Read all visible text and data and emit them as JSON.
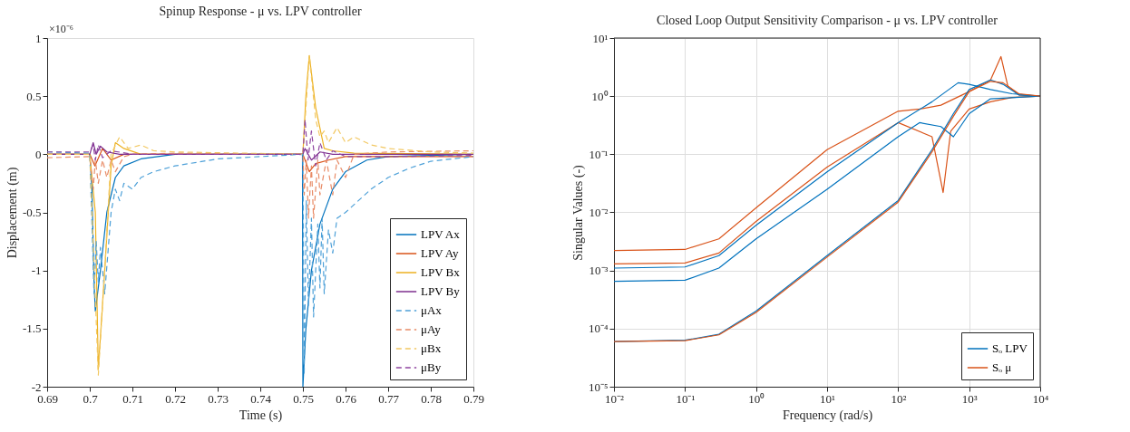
{
  "chart_data": [
    {
      "type": "line",
      "title": "Spinup Response - μ vs. LPV controller",
      "xlabel": "Time (s)",
      "ylabel": "Displacement (m)",
      "annotations": [
        "×10⁻⁶"
      ],
      "xlim": [
        0.69,
        0.79
      ],
      "xticks": [
        0.69,
        0.7,
        0.71,
        0.72,
        0.73,
        0.74,
        0.75,
        0.76,
        0.77,
        0.78,
        0.79
      ],
      "ylim": [
        -2,
        1
      ],
      "yticks": [
        -2,
        -1.5,
        -1,
        -0.5,
        0,
        0.5,
        1
      ],
      "grid": false,
      "legend": "bottom right",
      "series": [
        {
          "name": "LPV Ax",
          "color": "#0072bd",
          "line_style": "solid",
          "x": [
            0.69,
            0.7,
            0.7005,
            0.701,
            0.7013,
            0.7025,
            0.704,
            0.706,
            0.708,
            0.712,
            0.72,
            0.7499,
            0.75,
            0.7507,
            0.752,
            0.754,
            0.757,
            0.76,
            0.765,
            0.77,
            0.79
          ],
          "values": [
            0,
            0,
            -0.3,
            -1.1,
            -1.35,
            -1.0,
            -0.5,
            -0.2,
            -0.1,
            -0.04,
            0,
            0,
            -2,
            -1.5,
            -1.0,
            -0.6,
            -0.3,
            -0.15,
            -0.05,
            -0.02,
            0
          ]
        },
        {
          "name": "LPV Ay",
          "color": "#d95319",
          "line_style": "solid",
          "x": [
            0.69,
            0.7,
            0.7012,
            0.703,
            0.705,
            0.708,
            0.75,
            0.7515,
            0.753,
            0.756,
            0.76,
            0.79
          ],
          "values": [
            0,
            0,
            -0.1,
            0.05,
            -0.05,
            0,
            0,
            -0.15,
            -0.08,
            -0.05,
            -0.02,
            -0.02
          ]
        },
        {
          "name": "LPV Bx",
          "color": "#edb120",
          "line_style": "solid",
          "x": [
            0.69,
            0.7,
            0.7013,
            0.702,
            0.7035,
            0.705,
            0.706,
            0.708,
            0.712,
            0.75,
            0.7507,
            0.7515,
            0.753,
            0.755,
            0.757,
            0.762,
            0.79
          ],
          "values": [
            0,
            0,
            -0.5,
            -1.85,
            -1.0,
            -0.1,
            0.1,
            0.05,
            0,
            0,
            0.5,
            0.85,
            0.4,
            0.05,
            0.03,
            0.01,
            0
          ]
        },
        {
          "name": "LPV By",
          "color": "#7e2f8e",
          "line_style": "solid",
          "x": [
            0.69,
            0.7,
            0.7008,
            0.7015,
            0.7025,
            0.704,
            0.707,
            0.75,
            0.7505,
            0.752,
            0.754,
            0.757,
            0.79
          ],
          "values": [
            0,
            0,
            0.1,
            0,
            0.07,
            0.02,
            0,
            0,
            0.05,
            -0.05,
            0.02,
            0,
            0
          ]
        },
        {
          "name": "μAx",
          "color": "#4da0d8",
          "line_style": "dashed",
          "x": [
            0.69,
            0.7,
            0.701,
            0.7015,
            0.702,
            0.7025,
            0.7035,
            0.705,
            0.706,
            0.707,
            0.708,
            0.71,
            0.712,
            0.715,
            0.72,
            0.73,
            0.74,
            0.75,
            0.7503,
            0.7508,
            0.7513,
            0.752,
            0.7525,
            0.7535,
            0.754,
            0.7545,
            0.755,
            0.756,
            0.757,
            0.758,
            0.76,
            0.763,
            0.766,
            0.77,
            0.775,
            0.78,
            0.79
          ],
          "values": [
            0.02,
            0.01,
            -1.2,
            -0.75,
            -1.1,
            -0.8,
            -1.2,
            -0.5,
            -0.3,
            -0.4,
            -0.25,
            -0.3,
            -0.2,
            -0.15,
            -0.1,
            -0.04,
            -0.02,
            0,
            -1.9,
            -0.4,
            -1.3,
            -0.55,
            -1.4,
            -0.6,
            -1.15,
            -0.55,
            -1.2,
            -0.65,
            -0.85,
            -0.55,
            -0.5,
            -0.4,
            -0.3,
            -0.2,
            -0.12,
            -0.06,
            -0.02
          ]
        },
        {
          "name": "μAy",
          "color": "#e88b66",
          "line_style": "dashed",
          "x": [
            0.69,
            0.7,
            0.7008,
            0.7013,
            0.702,
            0.703,
            0.704,
            0.705,
            0.706,
            0.708,
            0.71,
            0.72,
            0.75,
            0.7503,
            0.7508,
            0.7513,
            0.752,
            0.7525,
            0.7535,
            0.754,
            0.7555,
            0.757,
            0.758,
            0.76,
            0.762,
            0.77,
            0.79
          ],
          "values": [
            -0.03,
            -0.02,
            -0.3,
            -0.05,
            -0.25,
            -0.05,
            -0.2,
            -0.05,
            -0.15,
            -0.02,
            0,
            0.01,
            0,
            -0.35,
            -0.05,
            -0.55,
            -0.1,
            -0.55,
            -0.05,
            -0.35,
            -0.05,
            -0.35,
            -0.05,
            -0.2,
            0,
            0.02,
            0.03
          ]
        },
        {
          "name": "μBx",
          "color": "#f2c862",
          "line_style": "dashed",
          "x": [
            0.69,
            0.7,
            0.702,
            0.7035,
            0.705,
            0.707,
            0.709,
            0.712,
            0.715,
            0.72,
            0.75,
            0.7515,
            0.753,
            0.754,
            0.755,
            0.756,
            0.758,
            0.76,
            0.762,
            0.766,
            0.77,
            0.78,
            0.79
          ],
          "values": [
            0,
            0,
            -1.9,
            -1.0,
            0,
            0.15,
            0.05,
            0.08,
            0.03,
            0.02,
            0,
            0.85,
            0.3,
            0.15,
            0.2,
            0.1,
            0.23,
            0.1,
            0.15,
            0.08,
            0.05,
            0.02,
            0.01
          ]
        },
        {
          "name": "μBy",
          "color": "#8e44a0",
          "line_style": "dashed",
          "x": [
            0.69,
            0.7,
            0.7008,
            0.7013,
            0.702,
            0.703,
            0.705,
            0.71,
            0.75,
            0.7505,
            0.7512,
            0.752,
            0.753,
            0.754,
            0.7555,
            0.757,
            0.76,
            0.77,
            0.79
          ],
          "values": [
            0.02,
            0.02,
            0.08,
            -0.05,
            0.08,
            -0.03,
            0.03,
            0,
            0,
            0.3,
            -0.05,
            0.2,
            -0.1,
            0.1,
            -0.05,
            0.03,
            -0.02,
            -0.02,
            -0.01
          ]
        }
      ]
    },
    {
      "type": "line",
      "title": "Closed Loop Output Sensitivity Comparison - μ vs. LPV controller",
      "xlabel": "Frequency (rad/s)",
      "ylabel": "Singular Values (-)",
      "log": "xy",
      "grid": true,
      "legend": "bottom right",
      "xlim": [
        0.01,
        10000
      ],
      "xticks": [
        {
          "value": 0.01,
          "label": "10⁻²"
        },
        {
          "value": 0.1,
          "label": "10⁻¹"
        },
        {
          "value": 1,
          "label": "10⁰"
        },
        {
          "value": 10,
          "label": "10¹"
        },
        {
          "value": 100,
          "label": "10²"
        },
        {
          "value": 1000,
          "label": "10³"
        },
        {
          "value": 10000,
          "label": "10⁴"
        }
      ],
      "ylim": [
        1e-05,
        10
      ],
      "yticks": [
        {
          "value": 1e-05,
          "label": "10⁻⁵"
        },
        {
          "value": 0.0001,
          "label": "10⁻⁴"
        },
        {
          "value": 0.001,
          "label": "10⁻³"
        },
        {
          "value": 0.01,
          "label": "10⁻²"
        },
        {
          "value": 0.1,
          "label": "10⁻¹"
        },
        {
          "value": 1,
          "label": "10⁰"
        },
        {
          "value": 10,
          "label": "10¹"
        }
      ],
      "series": [
        {
          "color": "#d95319",
          "line_style": "solid",
          "x": [
            0.01,
            0.1,
            0.3,
            1,
            10,
            100,
            200,
            400,
            1000,
            2000,
            2800,
            3500,
            5000,
            10000
          ],
          "values": [
            0.0022,
            0.0023,
            0.0035,
            0.012,
            0.12,
            0.55,
            0.6,
            0.7,
            1.2,
            1.9,
            4.8,
            1.5,
            1.05,
            1.0
          ]
        },
        {
          "color": "#d95319",
          "line_style": "solid",
          "x": [
            0.01,
            0.1,
            0.3,
            1,
            10,
            100,
            300,
            430,
            550,
            1000,
            2000,
            4000,
            10000
          ],
          "values": [
            0.0013,
            0.00135,
            0.002,
            0.007,
            0.06,
            0.35,
            0.2,
            0.022,
            0.25,
            0.6,
            0.8,
            0.95,
            1.0
          ]
        },
        {
          "color": "#0072bd",
          "line_style": "solid",
          "x": [
            0.01,
            0.1,
            0.3,
            1,
            10,
            100,
            300,
            700,
            1000,
            2000,
            4000,
            10000
          ],
          "values": [
            0.0011,
            0.00115,
            0.0018,
            0.006,
            0.05,
            0.35,
            0.8,
            1.7,
            1.6,
            1.3,
            1.1,
            1.0
          ]
        },
        {
          "color": "#0072bd",
          "line_style": "solid",
          "x": [
            0.01,
            0.1,
            0.3,
            1,
            10,
            100,
            200,
            400,
            600,
            1000,
            2000,
            10000
          ],
          "values": [
            0.00065,
            0.00068,
            0.0011,
            0.0035,
            0.025,
            0.2,
            0.35,
            0.3,
            0.2,
            0.5,
            0.9,
            1.0
          ]
        },
        {
          "name": "Sₒ LPV",
          "color": "#0072bd",
          "line_style": "solid",
          "x": [
            0.01,
            0.1,
            0.3,
            1,
            10,
            100,
            300,
            600,
            1000,
            2000,
            3000,
            5000,
            10000
          ],
          "values": [
            6e-05,
            6.3e-05,
            8e-05,
            0.0002,
            0.0018,
            0.016,
            0.12,
            0.5,
            1.3,
            1.9,
            1.6,
            1.05,
            1.0
          ]
        },
        {
          "name": "Sₒ μ",
          "color": "#d95319",
          "line_style": "solid",
          "x": [
            0.01,
            0.1,
            0.3,
            1,
            10,
            100,
            300,
            600,
            1000,
            2000,
            3000,
            5000,
            10000
          ],
          "values": [
            6e-05,
            6.2e-05,
            7.8e-05,
            0.00019,
            0.0017,
            0.015,
            0.11,
            0.45,
            1.2,
            1.8,
            1.7,
            1.1,
            1.0
          ]
        }
      ]
    }
  ]
}
